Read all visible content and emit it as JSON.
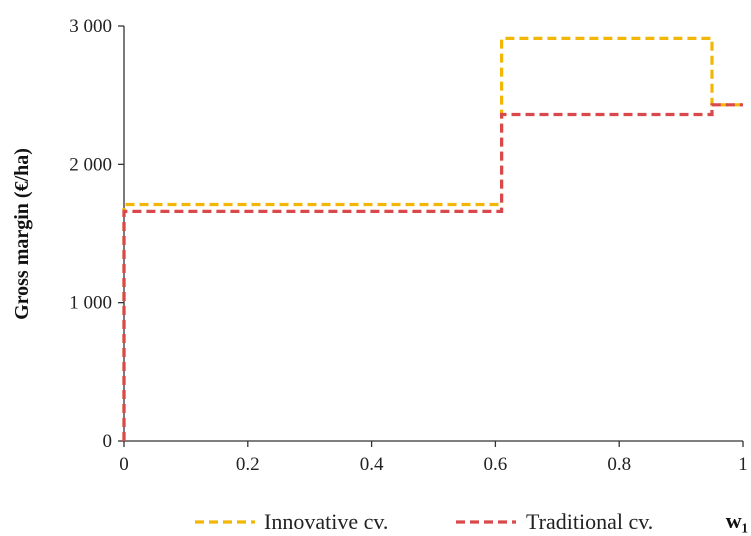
{
  "chart_data": {
    "type": "line",
    "xlabel": "w₁",
    "ylabel": "Gross margin (€/ha)",
    "xlim": [
      0,
      1
    ],
    "ylim": [
      0,
      3000
    ],
    "x_ticks": [
      0,
      0.2,
      0.4,
      0.6,
      0.8,
      1
    ],
    "x_tick_labels": [
      "0",
      "0.2",
      "0.4",
      "0.6",
      "0.8",
      "1"
    ],
    "y_ticks": [
      0,
      1000,
      2000,
      3000
    ],
    "y_tick_labels": [
      "0",
      "1 000",
      "2 000",
      "3 000"
    ],
    "grid": false,
    "legend_position": "bottom",
    "series": [
      {
        "name": "Innovative cv.",
        "color": "#F2B705",
        "style": "dashed",
        "step": true,
        "x": [
          0,
          0,
          0.61,
          0.61,
          0.95,
          0.95,
          1
        ],
        "y": [
          0,
          1710,
          1710,
          2910,
          2910,
          2430,
          2430
        ]
      },
      {
        "name": "Traditional cv.",
        "color": "#D9484B",
        "style": "dashed",
        "step": true,
        "x": [
          0,
          0,
          0.61,
          0.61,
          0.95,
          0.95,
          1
        ],
        "y": [
          0,
          1660,
          1660,
          2360,
          2360,
          2430,
          2430
        ]
      }
    ]
  }
}
